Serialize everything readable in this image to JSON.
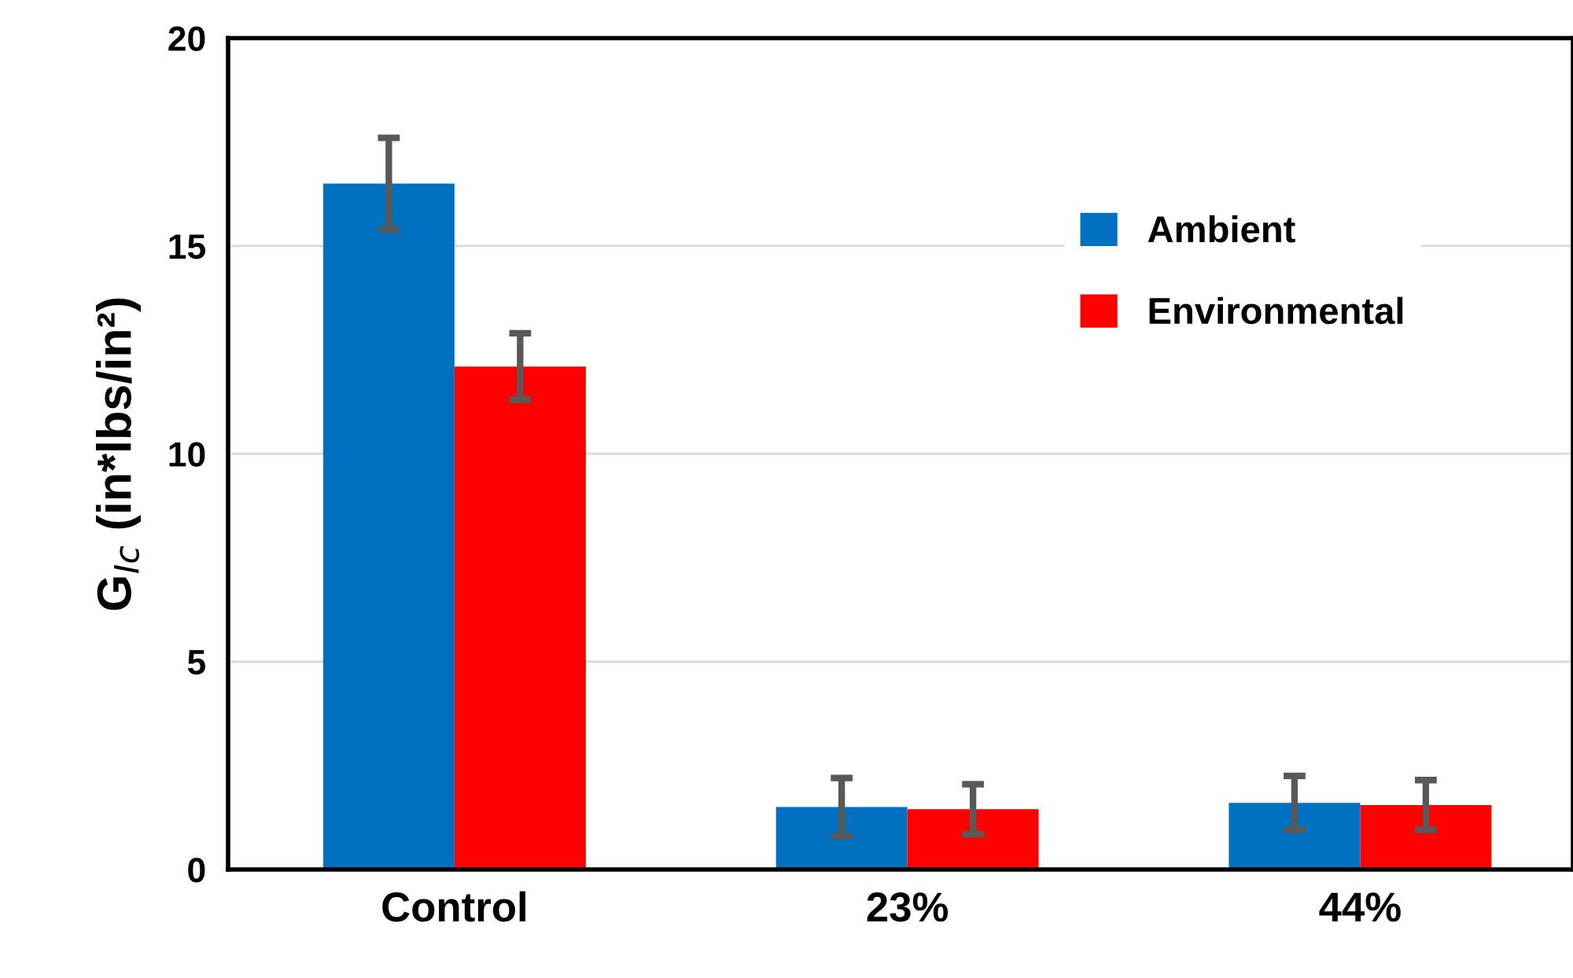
{
  "chart_data": {
    "type": "bar",
    "ylabel": "G$_{Ic}$ (in*lbs/in²)",
    "categories": [
      "Control",
      "23%",
      "44%"
    ],
    "series": [
      {
        "name": "Ambient",
        "color": "#0070c0",
        "values": [
          16.5,
          1.5,
          1.6
        ],
        "errors": [
          1.1,
          0.7,
          0.65
        ]
      },
      {
        "name": "Environmental",
        "color": "#ff0000",
        "values": [
          12.1,
          1.45,
          1.55
        ],
        "errors": [
          0.8,
          0.6,
          0.6
        ]
      }
    ],
    "ylim": [
      0,
      20
    ],
    "yticks": [
      0,
      5,
      10,
      15,
      20
    ],
    "grid": "y",
    "legend": "top right"
  }
}
